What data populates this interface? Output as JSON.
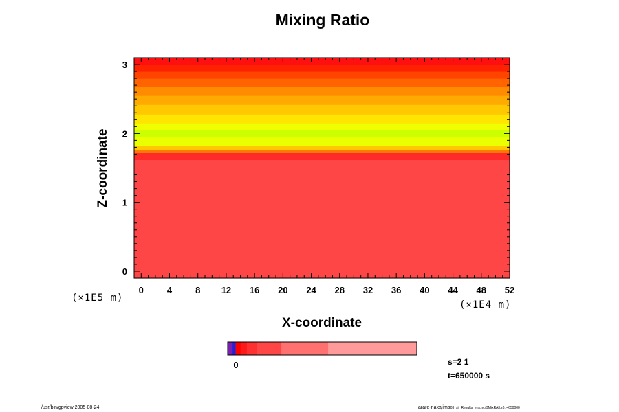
{
  "chart_data": {
    "type": "heatmap",
    "title": "Mixing Ratio",
    "xlabel": "X-coordinate",
    "ylabel": "Z-coordinate",
    "x_unit": "(×1E4 m)",
    "y_unit": "(×1E5 m)",
    "xlim": [
      -1.0,
      52.0
    ],
    "ylim": [
      -0.1,
      3.1
    ],
    "x_ticks": [
      "0",
      "4",
      "8",
      "12",
      "16",
      "20",
      "24",
      "28",
      "32",
      "36",
      "40",
      "44",
      "48",
      "52"
    ],
    "y_ticks": [
      "0",
      "1",
      "2",
      "3"
    ],
    "bands": [
      {
        "z0": -0.1,
        "z1": 1.62,
        "color": "#ff4646"
      },
      {
        "z0": 1.62,
        "z1": 1.72,
        "color": "#ff2a2a"
      },
      {
        "z0": 1.72,
        "z1": 1.77,
        "color": "#ff7a00"
      },
      {
        "z0": 1.77,
        "z1": 1.83,
        "color": "#ffc800"
      },
      {
        "z0": 1.83,
        "z1": 1.95,
        "color": "#eaff00"
      },
      {
        "z0": 1.95,
        "z1": 2.05,
        "color": "#ccff00"
      },
      {
        "z0": 2.05,
        "z1": 2.15,
        "color": "#f0ff00"
      },
      {
        "z0": 2.15,
        "z1": 2.28,
        "color": "#ffe600"
      },
      {
        "z0": 2.28,
        "z1": 2.42,
        "color": "#ffc800"
      },
      {
        "z0": 2.42,
        "z1": 2.55,
        "color": "#ffaa00"
      },
      {
        "z0": 2.55,
        "z1": 2.68,
        "color": "#ff8c00"
      },
      {
        "z0": 2.68,
        "z1": 2.8,
        "color": "#ff6400"
      },
      {
        "z0": 2.8,
        "z1": 2.9,
        "color": "#ff4400"
      },
      {
        "z0": 2.9,
        "z1": 3.0,
        "color": "#ff2200"
      },
      {
        "z0": 3.0,
        "z1": 3.1,
        "color": "#ff1010"
      }
    ],
    "colorbar": {
      "tick_label": "0",
      "segments": [
        {
          "color": "#7a1fb0",
          "weight": 1
        },
        {
          "color": "#2222dd",
          "weight": 0.6
        },
        {
          "color": "#ff0000",
          "weight": 1
        },
        {
          "color": "#ff1a1a",
          "weight": 1.3
        },
        {
          "color": "#ff3030",
          "weight": 2
        },
        {
          "color": "#ff4646",
          "weight": 5
        },
        {
          "color": "#ff7070",
          "weight": 9.5
        },
        {
          "color": "#ff9a9a",
          "weight": 18
        }
      ]
    }
  },
  "info": {
    "s_line": "s=2 1",
    "t_line": "t=650000 s"
  },
  "footer": {
    "left": "/usr/bin/gpview 2005-08-24",
    "right": "arare-nakajima",
    "right_small": "03_sil_Results_ens.nc@MixRAll,z0,t=650000"
  }
}
